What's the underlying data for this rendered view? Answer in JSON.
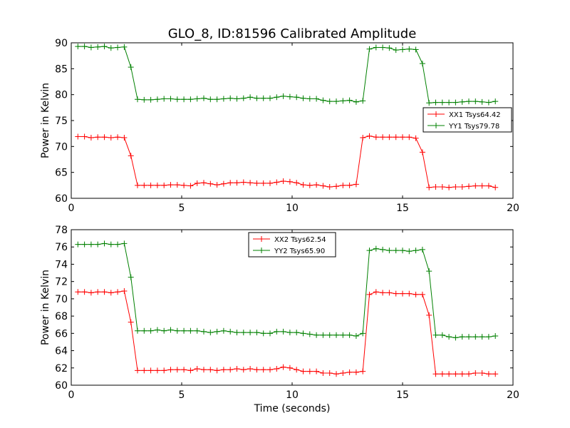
{
  "figure": {
    "title": "GLO_8, ID:81596 Calibrated Amplitude"
  },
  "chart_data": [
    {
      "type": "line",
      "title": "GLO_8, ID:81596 Calibrated Amplitude",
      "xlabel": "",
      "ylabel": "Power in Kelvin",
      "xlim": [
        0,
        20
      ],
      "ylim": [
        60,
        90
      ],
      "xticks": [
        "0",
        "5",
        "10",
        "15",
        "20"
      ],
      "yticks": [
        "60",
        "65",
        "70",
        "75",
        "80",
        "85",
        "90"
      ],
      "grid": false,
      "legend_position": "center-right",
      "x": [
        0.3,
        0.6,
        0.9,
        1.2,
        1.5,
        1.8,
        2.1,
        2.4,
        2.7,
        3.0,
        3.3,
        3.6,
        3.9,
        4.2,
        4.5,
        4.8,
        5.1,
        5.4,
        5.7,
        6.0,
        6.3,
        6.6,
        6.9,
        7.2,
        7.5,
        7.8,
        8.1,
        8.4,
        8.7,
        9.0,
        9.3,
        9.6,
        9.9,
        10.2,
        10.5,
        10.8,
        11.1,
        11.4,
        11.7,
        12.0,
        12.3,
        12.6,
        12.9,
        13.2,
        13.5,
        13.8,
        14.1,
        14.4,
        14.7,
        15.0,
        15.3,
        15.6,
        15.9,
        16.2,
        16.5,
        16.8,
        17.1,
        17.4,
        17.7,
        18.0,
        18.3,
        18.6,
        18.9,
        19.2
      ],
      "series": [
        {
          "name": "XX1 Tsys64.42",
          "color": "#ff0000",
          "values": [
            71.9,
            71.9,
            71.7,
            71.8,
            71.8,
            71.7,
            71.8,
            71.7,
            68.2,
            62.5,
            62.5,
            62.5,
            62.5,
            62.5,
            62.6,
            62.6,
            62.5,
            62.4,
            62.9,
            63.0,
            62.8,
            62.6,
            62.8,
            63.0,
            63.0,
            63.1,
            63.0,
            62.9,
            62.9,
            62.9,
            63.1,
            63.3,
            63.2,
            63.0,
            62.6,
            62.5,
            62.6,
            62.4,
            62.2,
            62.3,
            62.5,
            62.5,
            62.7,
            71.7,
            72.0,
            71.8,
            71.8,
            71.8,
            71.8,
            71.8,
            71.8,
            71.6,
            68.9,
            62.1,
            62.2,
            62.2,
            62.1,
            62.2,
            62.2,
            62.3,
            62.4,
            62.4,
            62.4,
            62.1
          ]
        },
        {
          "name": "YY1 Tsys79.78",
          "color": "#008000",
          "values": [
            89.3,
            89.3,
            89.1,
            89.2,
            89.3,
            89.0,
            89.1,
            89.2,
            85.3,
            79.1,
            79.0,
            79.0,
            79.1,
            79.2,
            79.2,
            79.1,
            79.1,
            79.1,
            79.2,
            79.3,
            79.1,
            79.1,
            79.2,
            79.3,
            79.2,
            79.3,
            79.5,
            79.3,
            79.3,
            79.3,
            79.5,
            79.7,
            79.6,
            79.5,
            79.3,
            79.2,
            79.2,
            78.9,
            78.7,
            78.7,
            78.8,
            78.9,
            78.6,
            78.8,
            88.8,
            89.1,
            89.1,
            89.0,
            88.6,
            88.7,
            88.8,
            88.7,
            86.0,
            78.4,
            78.5,
            78.5,
            78.5,
            78.5,
            78.6,
            78.7,
            78.7,
            78.6,
            78.5,
            78.7
          ]
        }
      ]
    },
    {
      "type": "line",
      "title": "",
      "xlabel": "Time (seconds)",
      "ylabel": "Power in Kelvin",
      "xlim": [
        0,
        20
      ],
      "ylim": [
        60,
        78
      ],
      "xticks": [
        "0",
        "5",
        "10",
        "15",
        "20"
      ],
      "yticks": [
        "60",
        "62",
        "64",
        "66",
        "68",
        "70",
        "72",
        "74",
        "76",
        "78"
      ],
      "grid": false,
      "legend_position": "top-center",
      "x": [
        0.3,
        0.6,
        0.9,
        1.2,
        1.5,
        1.8,
        2.1,
        2.4,
        2.7,
        3.0,
        3.3,
        3.6,
        3.9,
        4.2,
        4.5,
        4.8,
        5.1,
        5.4,
        5.7,
        6.0,
        6.3,
        6.6,
        6.9,
        7.2,
        7.5,
        7.8,
        8.1,
        8.4,
        8.7,
        9.0,
        9.3,
        9.6,
        9.9,
        10.2,
        10.5,
        10.8,
        11.1,
        11.4,
        11.7,
        12.0,
        12.3,
        12.6,
        12.9,
        13.2,
        13.5,
        13.8,
        14.1,
        14.4,
        14.7,
        15.0,
        15.3,
        15.6,
        15.9,
        16.2,
        16.5,
        16.8,
        17.1,
        17.4,
        17.7,
        18.0,
        18.3,
        18.6,
        18.9,
        19.2
      ],
      "series": [
        {
          "name": "XX2 Tsys62.54",
          "color": "#ff0000",
          "values": [
            70.8,
            70.8,
            70.7,
            70.8,
            70.8,
            70.7,
            70.8,
            70.9,
            67.3,
            61.7,
            61.7,
            61.7,
            61.7,
            61.7,
            61.8,
            61.8,
            61.8,
            61.7,
            61.9,
            61.8,
            61.8,
            61.7,
            61.8,
            61.8,
            61.9,
            61.8,
            61.9,
            61.8,
            61.8,
            61.8,
            61.9,
            62.1,
            62.0,
            61.8,
            61.6,
            61.6,
            61.6,
            61.4,
            61.4,
            61.3,
            61.4,
            61.5,
            61.5,
            61.6,
            70.5,
            70.8,
            70.7,
            70.7,
            70.6,
            70.6,
            70.6,
            70.5,
            70.5,
            68.1,
            61.3,
            61.3,
            61.3,
            61.3,
            61.3,
            61.3,
            61.4,
            61.4,
            61.3,
            61.3
          ]
        },
        {
          "name": "YY2 Tsys65.90",
          "color": "#008000",
          "values": [
            76.3,
            76.3,
            76.3,
            76.3,
            76.4,
            76.3,
            76.3,
            76.4,
            72.5,
            66.3,
            66.3,
            66.3,
            66.4,
            66.3,
            66.4,
            66.3,
            66.3,
            66.3,
            66.3,
            66.2,
            66.1,
            66.2,
            66.3,
            66.2,
            66.1,
            66.1,
            66.1,
            66.1,
            66.0,
            66.0,
            66.2,
            66.2,
            66.1,
            66.1,
            66.0,
            65.9,
            65.8,
            65.8,
            65.8,
            65.8,
            65.8,
            65.8,
            65.7,
            66.0,
            75.6,
            75.8,
            75.7,
            75.6,
            75.6,
            75.6,
            75.5,
            75.6,
            75.7,
            73.2,
            65.8,
            65.8,
            65.6,
            65.5,
            65.6,
            65.6,
            65.6,
            65.6,
            65.6,
            65.7
          ]
        }
      ]
    }
  ]
}
